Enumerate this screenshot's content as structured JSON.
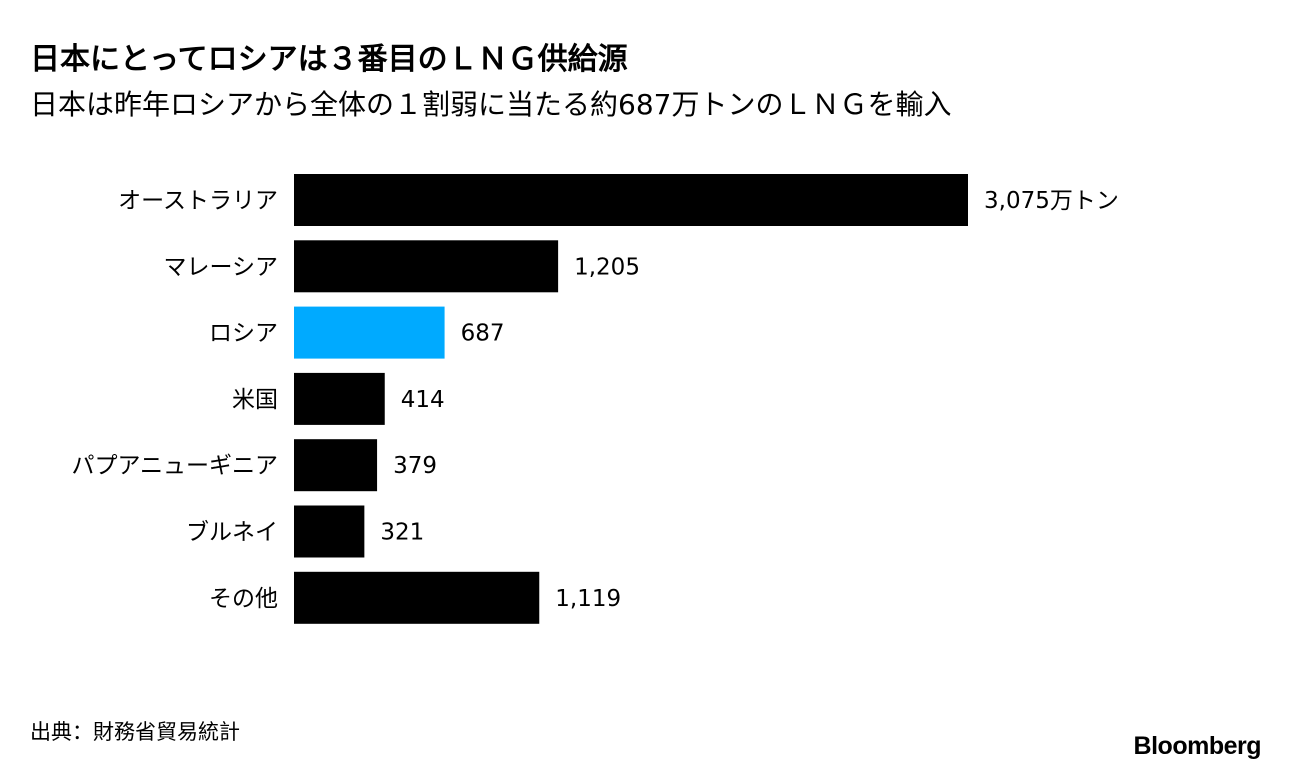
{
  "chart_data": {
    "type": "bar",
    "orientation": "horizontal",
    "title": "日本にとってロシアは３番目のＬＮＧ供給源",
    "subtitle": "日本は昨年ロシアから全体の１割弱に当たる約687万トンのＬＮＧを輸入",
    "categories": [
      "オーストラリア",
      "マレーシア",
      "ロシア",
      "米国",
      "パプアニューギニア",
      "ブルネイ",
      "その他"
    ],
    "values": [
      3075,
      1205,
      687,
      414,
      379,
      321,
      1119
    ],
    "value_labels": [
      "3,075万トン",
      "1,205",
      "687",
      "414",
      "379",
      "321",
      "1,119"
    ],
    "highlight_category": "ロシア",
    "colors": {
      "default": "#000000",
      "highlight": "#00aaff"
    },
    "xlim": [
      0,
      3075
    ],
    "grid": false,
    "legend": "none"
  },
  "source": "出典：財務省貿易統計",
  "brand": "Bloomberg"
}
